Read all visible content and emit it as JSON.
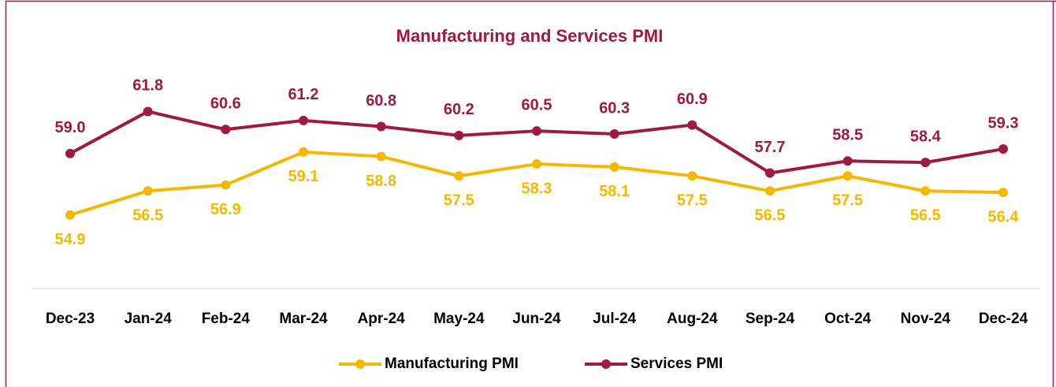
{
  "chart_data": {
    "type": "line",
    "title": "Manufacturing and Services PMI",
    "categories": [
      "Dec-23",
      "Jan-24",
      "Feb-24",
      "Mar-24",
      "Apr-24",
      "May-24",
      "Jun-24",
      "Jul-24",
      "Aug-24",
      "Sep-24",
      "Oct-24",
      "Nov-24",
      "Dec-24"
    ],
    "series": [
      {
        "name": "Manufacturing PMI",
        "color": "#f5b800",
        "values": [
          54.9,
          56.5,
          56.9,
          59.1,
          58.8,
          57.5,
          58.3,
          58.1,
          57.5,
          56.5,
          57.5,
          56.5,
          56.4
        ]
      },
      {
        "name": "Services PMI",
        "color": "#9e1a3e",
        "values": [
          59.0,
          61.8,
          60.6,
          61.2,
          60.8,
          60.2,
          60.5,
          60.3,
          60.9,
          57.7,
          58.5,
          58.4,
          59.3
        ]
      }
    ],
    "ylim": [
      50,
      70
    ],
    "legend": "bottom"
  }
}
